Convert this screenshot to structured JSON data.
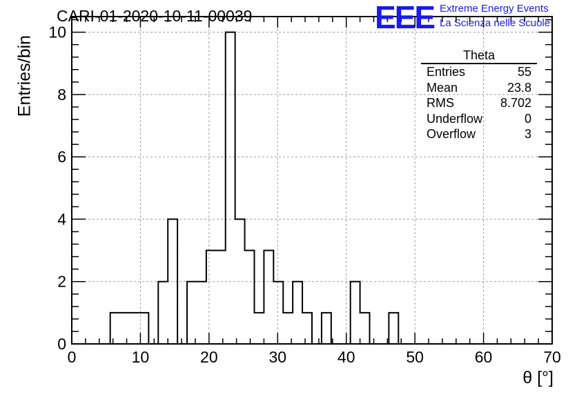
{
  "title": "CARI-01-2020-10-11-00039",
  "logo": {
    "mark": "EEE",
    "line1": "Extreme Energy Events",
    "line2": "La Scienza nelle Scuole",
    "color": "#1a1aee"
  },
  "stats": {
    "title": "Theta",
    "rows": [
      {
        "label": "Entries",
        "value": "55"
      },
      {
        "label": "Mean",
        "value": "23.8"
      },
      {
        "label": "RMS",
        "value": "8.702"
      },
      {
        "label": "Underflow",
        "value": "0"
      },
      {
        "label": "Overflow",
        "value": "3"
      }
    ]
  },
  "chart_data": {
    "type": "bar",
    "histogram": true,
    "xlabel": "θ [°]",
    "ylabel": "Entries/bin",
    "xlim": [
      0,
      70
    ],
    "ylim": [
      0,
      10.5
    ],
    "xticks": [
      0,
      10,
      20,
      30,
      40,
      50,
      60,
      70
    ],
    "yticks": [
      0,
      2,
      4,
      6,
      8,
      10
    ],
    "grid": true,
    "line_color": "#000000",
    "bin_edges": [
      0,
      1.4,
      2.8,
      4.2,
      5.6,
      7,
      8.4,
      9.8,
      11.2,
      12.6,
      14,
      15.4,
      16.8,
      18.2,
      19.6,
      21,
      22.4,
      23.8,
      25.2,
      26.6,
      28,
      29.4,
      30.8,
      32.2,
      33.6,
      35,
      36.4,
      37.8,
      39.2,
      40.6,
      42,
      43.4,
      44.8,
      46.2,
      47.6,
      49,
      50.4,
      51.8,
      53.2,
      54.6,
      56,
      57.4,
      58.8,
      60.2,
      61.6,
      63,
      64.4,
      65.8,
      67.2,
      68.6,
      70
    ],
    "values": [
      0,
      0,
      0,
      0,
      1,
      1,
      1,
      1,
      0,
      2,
      4,
      0,
      2,
      2,
      3,
      3,
      10,
      4,
      3,
      1,
      3,
      2,
      1,
      2,
      1,
      0,
      1,
      0,
      0,
      2,
      1,
      0,
      0,
      1,
      0,
      0,
      0,
      0,
      0,
      0,
      0,
      0,
      0,
      0,
      0,
      0,
      0,
      0,
      0,
      0
    ]
  }
}
